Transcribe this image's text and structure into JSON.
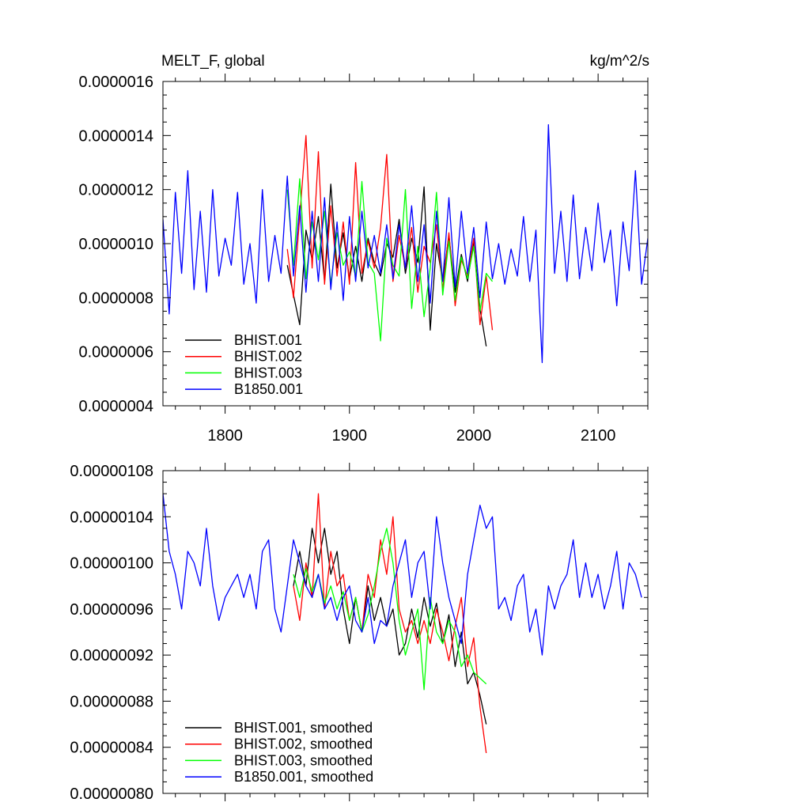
{
  "chart_data": [
    {
      "type": "line",
      "title_left": "MELT_F, global",
      "title_right": "kg/m^2/s",
      "xlim": [
        1750,
        2140
      ],
      "ylim": [
        4e-07,
        1.6e-06
      ],
      "x_ticks": [
        1800,
        1900,
        2000,
        2100
      ],
      "x_tick_labels": [
        "1800",
        "1900",
        "2000",
        "2100"
      ],
      "y_ticks": [
        4e-07,
        6e-07,
        8e-07,
        1e-06,
        1.2e-06,
        1.4e-06,
        1.6e-06
      ],
      "y_tick_labels": [
        "0.0000004",
        "0.0000006",
        "0.0000008",
        "0.0000010",
        "0.0000012",
        "0.0000014",
        "0.0000016"
      ],
      "legend_position": "bottom-left",
      "series": [
        {
          "name": "BHIST.001",
          "color": "#000000",
          "x": [
            1850,
            1860,
            1865,
            1870,
            1875,
            1880,
            1885,
            1890,
            1895,
            1900,
            1905,
            1910,
            1915,
            1920,
            1925,
            1930,
            1935,
            1940,
            1945,
            1950,
            1955,
            1960,
            1965,
            1970,
            1975,
            1980,
            1985,
            1990,
            1995,
            2000,
            2005,
            2010
          ],
          "y": [
            9.2e-07,
            7e-07,
            1.05e-06,
            9.4e-07,
            1.1e-06,
            8.6e-07,
            1.22e-06,
            9.1e-07,
            1.04e-06,
            8.7e-07,
            9.9e-07,
            8.6e-07,
            1.02e-06,
            9.3e-07,
            8.8e-07,
            1e-06,
            9.5e-07,
            1.09e-06,
            8.9e-07,
            1.02e-06,
            9.3e-07,
            1.21e-06,
            6.8e-07,
            1e-06,
            8.6e-07,
            1.03e-06,
            8.2e-07,
            9.6e-07,
            8.6e-07,
            1.01e-06,
            7.6e-07,
            6.2e-07
          ]
        },
        {
          "name": "BHIST.002",
          "color": "#ff0000",
          "x": [
            1850,
            1855,
            1860,
            1865,
            1870,
            1875,
            1880,
            1885,
            1890,
            1895,
            1900,
            1905,
            1910,
            1915,
            1920,
            1925,
            1930,
            1935,
            1940,
            1945,
            1950,
            1955,
            1960,
            1965,
            1970,
            1975,
            1980,
            1985,
            1990,
            1995,
            2000,
            2005,
            2010,
            2015
          ],
          "y": [
            9.8e-07,
            8e-07,
            1.1e-06,
            1.4e-06,
            9.1e-07,
            1.34e-06,
            8.5e-07,
            1.14e-06,
            8.8e-07,
            1.08e-06,
            8.5e-07,
            1.3e-06,
            8.9e-07,
            1.01e-06,
            9.1e-07,
            1.06e-06,
            1.33e-06,
            8.6e-07,
            1.03e-06,
            9.1e-07,
            1.06e-06,
            8.2e-07,
            9.9e-07,
            9.3e-07,
            1.07e-06,
            8.3e-07,
            1.04e-06,
            7.7e-07,
            9.4e-07,
            8.8e-07,
            1.02e-06,
            7e-07,
            8.8e-07,
            6.8e-07
          ]
        },
        {
          "name": "BHIST.003",
          "color": "#00ff00",
          "x": [
            1850,
            1855,
            1860,
            1865,
            1870,
            1875,
            1880,
            1885,
            1890,
            1895,
            1900,
            1905,
            1910,
            1915,
            1920,
            1925,
            1930,
            1935,
            1940,
            1945,
            1950,
            1955,
            1960,
            1965,
            1970,
            1975,
            1980,
            1985,
            1990,
            1995,
            2000,
            2005,
            2010,
            2015
          ],
          "y": [
            1.2e-06,
            9.2e-07,
            1.24e-06,
            8.7e-07,
            1.08e-06,
            9.4e-07,
            1.12e-06,
            8.5e-07,
            1.04e-06,
            9.2e-07,
            9.7e-07,
            8.8e-07,
            1.23e-06,
            9.3e-07,
            8.9e-07,
            6.4e-07,
            1.02e-06,
            9.2e-07,
            8.8e-07,
            1.2e-06,
            7.6e-07,
            9.9e-07,
            7.3e-07,
            9.1e-07,
            1.19e-06,
            8.1e-07,
            1.01e-06,
            7.9e-07,
            9.5e-07,
            8.7e-07,
            9.9e-07,
            7.5e-07,
            8.9e-07,
            8.6e-07
          ]
        },
        {
          "name": "B1850.001",
          "color": "#0000ff",
          "x": [
            1750,
            1755,
            1760,
            1765,
            1770,
            1775,
            1780,
            1785,
            1790,
            1795,
            1800,
            1805,
            1810,
            1815,
            1820,
            1825,
            1830,
            1835,
            1840,
            1845,
            1850,
            1855,
            1860,
            1865,
            1870,
            1875,
            1880,
            1885,
            1890,
            1895,
            1900,
            1905,
            1910,
            1915,
            1920,
            1925,
            1930,
            1935,
            1940,
            1945,
            1950,
            1955,
            1960,
            1965,
            1970,
            1975,
            1980,
            1985,
            1990,
            1995,
            2000,
            2005,
            2010,
            2015,
            2020,
            2025,
            2030,
            2035,
            2040,
            2045,
            2050,
            2055,
            2060,
            2065,
            2070,
            2075,
            2080,
            2085,
            2090,
            2095,
            2100,
            2105,
            2110,
            2115,
            2120,
            2125,
            2130,
            2135,
            2140
          ],
          "y": [
            1.09e-06,
            7.4e-07,
            1.19e-06,
            8.9e-07,
            1.27e-06,
            8.3e-07,
            1.12e-06,
            8.2e-07,
            1.2e-06,
            8.8e-07,
            1.02e-06,
            9.2e-07,
            1.19e-06,
            8.5e-07,
            1e-06,
            7.8e-07,
            1.2e-06,
            8.6e-07,
            1.03e-06,
            8.9e-07,
            1.25e-06,
            8.8e-07,
            1.14e-06,
            8.2e-07,
            1.12e-06,
            8.6e-07,
            1.17e-06,
            8.3e-07,
            1.08e-06,
            7.9e-07,
            1.1e-06,
            8.6e-07,
            1.12e-06,
            9.1e-07,
            1.03e-06,
            8.9e-07,
            1.07e-06,
            8.7e-07,
            1.07e-06,
            9.1e-07,
            1.14e-06,
            8.6e-07,
            1.07e-06,
            7.8e-07,
            1.12e-06,
            8.6e-07,
            1.17e-06,
            8.4e-07,
            1.12e-06,
            8.9e-07,
            1.06e-06,
            8e-07,
            1.08e-06,
            8.7e-07,
            1e-06,
            8.5e-07,
            9.8e-07,
            8.8e-07,
            1.1e-06,
            8.6e-07,
            1.05e-06,
            5.6e-07,
            1.44e-06,
            8.9e-07,
            1.12e-06,
            8.6e-07,
            1.18e-06,
            8.7e-07,
            1.06e-06,
            9e-07,
            1.15e-06,
            9.3e-07,
            1.05e-06,
            7.7e-07,
            1.08e-06,
            9e-07,
            1.27e-06,
            8.5e-07,
            1.02e-06
          ]
        }
      ]
    },
    {
      "type": "line",
      "xlim": [
        1750,
        2140
      ],
      "ylim": [
        8e-07,
        1.08e-06
      ],
      "x_ticks": [
        1800,
        1900,
        2000,
        2100
      ],
      "y_ticks": [
        8e-07,
        8.4e-07,
        8.8e-07,
        9.2e-07,
        9.6e-07,
        1e-06,
        1.04e-06,
        1.08e-06
      ],
      "y_tick_labels": [
        "0.00000080",
        "0.00000084",
        "0.00000088",
        "0.00000092",
        "0.00000096",
        "0.00000100",
        "0.00000104",
        "0.00000108"
      ],
      "legend_position": "bottom-left",
      "series": [
        {
          "name": "BHIST.001, smoothed",
          "color": "#000000",
          "x": [
            1855,
            1860,
            1865,
            1870,
            1875,
            1880,
            1885,
            1890,
            1895,
            1900,
            1905,
            1910,
            1915,
            1920,
            1925,
            1930,
            1935,
            1940,
            1945,
            1950,
            1955,
            1960,
            1965,
            1970,
            1975,
            1980,
            1985,
            1990,
            1995,
            2000,
            2005,
            2010
          ],
          "y": [
            9.8e-07,
            1.01e-06,
            9.8e-07,
            1.03e-06,
            1e-06,
            1.03e-06,
            9.9e-07,
            1.01e-06,
            9.6e-07,
            9.3e-07,
            9.7e-07,
            9.4e-07,
            9.8e-07,
            9.5e-07,
            9.7e-07,
            9.45e-07,
            9.6e-07,
            9.2e-07,
            9.3e-07,
            9.6e-07,
            9.35e-07,
            9.7e-07,
            9.45e-07,
            9.65e-07,
            9.3e-07,
            9.55e-07,
            9.1e-07,
            9.4e-07,
            8.95e-07,
            9.05e-07,
            8.85e-07,
            8.6e-07
          ]
        },
        {
          "name": "BHIST.002, smoothed",
          "color": "#ff0000",
          "x": [
            1855,
            1860,
            1865,
            1870,
            1875,
            1880,
            1885,
            1890,
            1895,
            1900,
            1905,
            1910,
            1915,
            1920,
            1925,
            1930,
            1935,
            1940,
            1945,
            1950,
            1955,
            1960,
            1965,
            1970,
            1975,
            1980,
            1985,
            1990,
            1995,
            2000,
            2005,
            2010
          ],
          "y": [
            9.8e-07,
            9.5e-07,
            1e-06,
            9.7e-07,
            1.06e-06,
            9.6e-07,
            1.01e-06,
            9.8e-07,
            9.9e-07,
            9.5e-07,
            9.7e-07,
            9.4e-07,
            9.9e-07,
            9.7e-07,
            1.02e-06,
            9.9e-07,
            1.04e-06,
            9.6e-07,
            9.4e-07,
            9.5e-07,
            9.3e-07,
            9.5e-07,
            9.3e-07,
            9.6e-07,
            9.4e-07,
            9.15e-07,
            9.45e-07,
            9.7e-07,
            9.1e-07,
            9.35e-07,
            8.75e-07,
            8.35e-07
          ]
        },
        {
          "name": "BHIST.003, smoothed",
          "color": "#00ff00",
          "x": [
            1855,
            1860,
            1865,
            1870,
            1875,
            1880,
            1885,
            1890,
            1895,
            1900,
            1905,
            1910,
            1915,
            1920,
            1925,
            1930,
            1935,
            1940,
            1945,
            1950,
            1955,
            1960,
            1965,
            1970,
            1975,
            1980,
            1985,
            1990,
            1995,
            2000,
            2005,
            2010
          ],
          "y": [
            9.9e-07,
            9.7e-07,
            9.95e-07,
            9.75e-07,
            9.9e-07,
            9.65e-07,
            9.8e-07,
            9.6e-07,
            9.75e-07,
            9.5e-07,
            9.7e-07,
            9.4e-07,
            9.55e-07,
            9.8e-07,
            1.01e-06,
            1.03e-06,
            1e-06,
            9.5e-07,
            9.2e-07,
            9.4e-07,
            9.6e-07,
            8.9e-07,
            9.7e-07,
            9.4e-07,
            9.3e-07,
            9.5e-07,
            9.4e-07,
            9.1e-07,
            9.2e-07,
            9.05e-07,
            9e-07,
            8.95e-07
          ]
        },
        {
          "name": "B1850.001, smoothed",
          "color": "#0000ff",
          "x": [
            1750,
            1755,
            1760,
            1765,
            1770,
            1775,
            1780,
            1785,
            1790,
            1795,
            1800,
            1805,
            1810,
            1815,
            1820,
            1825,
            1830,
            1835,
            1840,
            1845,
            1850,
            1855,
            1860,
            1865,
            1870,
            1875,
            1880,
            1885,
            1890,
            1895,
            1900,
            1905,
            1910,
            1915,
            1920,
            1925,
            1930,
            1935,
            1940,
            1945,
            1950,
            1955,
            1960,
            1965,
            1970,
            1975,
            1980,
            1985,
            1990,
            1995,
            2000,
            2005,
            2010,
            2015,
            2020,
            2025,
            2030,
            2035,
            2040,
            2045,
            2050,
            2055,
            2060,
            2065,
            2070,
            2075,
            2080,
            2085,
            2090,
            2095,
            2100,
            2105,
            2110,
            2115,
            2120,
            2125,
            2130,
            2135
          ],
          "y": [
            1.06e-06,
            1.01e-06,
            9.9e-07,
            9.6e-07,
            1.01e-06,
            1e-06,
            9.8e-07,
            1.03e-06,
            9.8e-07,
            9.5e-07,
            9.7e-07,
            9.8e-07,
            9.9e-07,
            9.7e-07,
            9.9e-07,
            9.6e-07,
            1.01e-06,
            1.02e-06,
            9.6e-07,
            9.4e-07,
            9.8e-07,
            1.02e-06,
            1e-06,
            9.8e-07,
            9.7e-07,
            9.9e-07,
            9.6e-07,
            9.7e-07,
            9.5e-07,
            9.7e-07,
            9.8e-07,
            9.5e-07,
            9.4e-07,
            9.7e-07,
            9.3e-07,
            9.5e-07,
            9.45e-07,
            9.8e-07,
            1e-06,
            1.02e-06,
            9.7e-07,
            1e-06,
            1.01e-06,
            9.6e-07,
            1.04e-06,
            1e-06,
            9.7e-07,
            9.5e-07,
            9.3e-07,
            9.9e-07,
            1.02e-06,
            1.05e-06,
            1.03e-06,
            1.04e-06,
            9.6e-07,
            9.7e-07,
            9.5e-07,
            9.8e-07,
            9.9e-07,
            9.4e-07,
            9.6e-07,
            9.2e-07,
            9.8e-07,
            9.6e-07,
            9.8e-07,
            9.9e-07,
            1.02e-06,
            9.7e-07,
            1e-06,
            9.7e-07,
            9.9e-07,
            9.6e-07,
            9.8e-07,
            1.01e-06,
            9.6e-07,
            1e-06,
            9.9e-07,
            9.7e-07
          ]
        }
      ]
    }
  ]
}
